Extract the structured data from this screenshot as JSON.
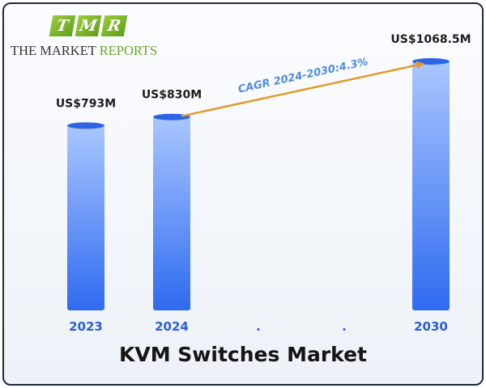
{
  "brand": {
    "letters": [
      "T",
      "M",
      "R"
    ],
    "name_part1": "THE MARKET ",
    "name_part2": "REPORTS"
  },
  "chart_data": {
    "type": "bar",
    "title": "KVM Switches Market",
    "categories": [
      "2023",
      "2024",
      "2030"
    ],
    "values": [
      793,
      830,
      1068.5
    ],
    "unit": "US$M",
    "data_labels": [
      "US$793M",
      "US$830M",
      "US$1068.5M"
    ],
    "axis_dots": [
      ".",
      "."
    ],
    "annotation": "CAGR 2024-2030:4.3%",
    "annotation_from": "2024",
    "annotation_to": "2030",
    "gridlines": false,
    "colors": {
      "bar_top": "#a9c6ff",
      "bar_bottom": "#2f6bf0",
      "bar_cap": "#2c64e8",
      "year_labels": "#2b5fd6",
      "arrow": "#e19a2a",
      "annotation_text": "#4f8de0"
    }
  }
}
